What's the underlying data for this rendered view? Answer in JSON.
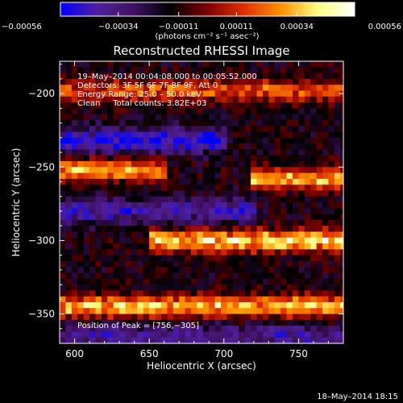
{
  "chart_data": {
    "type": "heatmap",
    "title": "Reconstructed RHESSI Image",
    "xlabel": "Heliocentric X (arcsec)",
    "ylabel": "Heliocentric Y (arcsec)",
    "xlim": [
      590,
      780
    ],
    "ylim": [
      -370,
      -178
    ],
    "x_ticks": [
      600,
      650,
      700,
      750
    ],
    "y_ticks": [
      -200,
      -250,
      -300,
      -350
    ],
    "x_tick_labels": [
      "600",
      "650",
      "700",
      "750"
    ],
    "y_tick_labels": [
      "−200",
      "−250",
      "−300",
      "−350"
    ],
    "colorbar": {
      "min": -0.00056,
      "max": 0.00056,
      "tick_values": [
        -0.00056,
        -0.00034,
        -0.00011,
        0.00011,
        0.00034,
        0.00056
      ],
      "tick_labels": [
        "−0.00056",
        "−0.00034",
        "−0.00011",
        "0.00011",
        "0.00034",
        "0.00056"
      ],
      "units_label": "(photons cm⁻² s⁻¹ asec⁻²)",
      "colormap": [
        "#0000ff",
        "#5020a0",
        "#401060",
        "#000000",
        "#800000",
        "#e03000",
        "#ff9000",
        "#ffff80",
        "#ffffff"
      ]
    },
    "annotations": {
      "time_range": "19–May–2014 00:04:08.000 to 00:05:52.000",
      "detectors": "Detectors: 3F 5F 6F 7F 8F 9F, Att 0",
      "energy": "Energy Range: 25.0 – 50.0 keV",
      "clean": "Clean     Total counts: 3.82E+03",
      "peak": "Position of Peak = [756,−305]"
    },
    "bright_bands": [
      {
        "y_center": -198,
        "x_start": 590,
        "x_end": 780,
        "intensity": 0.55
      },
      {
        "y_center": -252,
        "x_start": 590,
        "x_end": 660,
        "intensity": 0.75
      },
      {
        "y_center": -258,
        "x_start": 720,
        "x_end": 780,
        "intensity": 0.8
      },
      {
        "y_center": -300,
        "x_start": 650,
        "x_end": 780,
        "intensity": 0.95
      },
      {
        "y_center": -345,
        "x_start": 590,
        "x_end": 780,
        "intensity": 0.85
      }
    ],
    "dark_bands": [
      {
        "y_center": -232,
        "x_start": 590,
        "x_end": 700,
        "intensity": -0.7
      },
      {
        "y_center": -280,
        "x_start": 590,
        "x_end": 720,
        "intensity": -0.55
      },
      {
        "y_center": -365,
        "x_start": 590,
        "x_end": 780,
        "intensity": -0.45
      }
    ]
  },
  "footer": {
    "timestamp": "18–May–2014 18:15"
  }
}
